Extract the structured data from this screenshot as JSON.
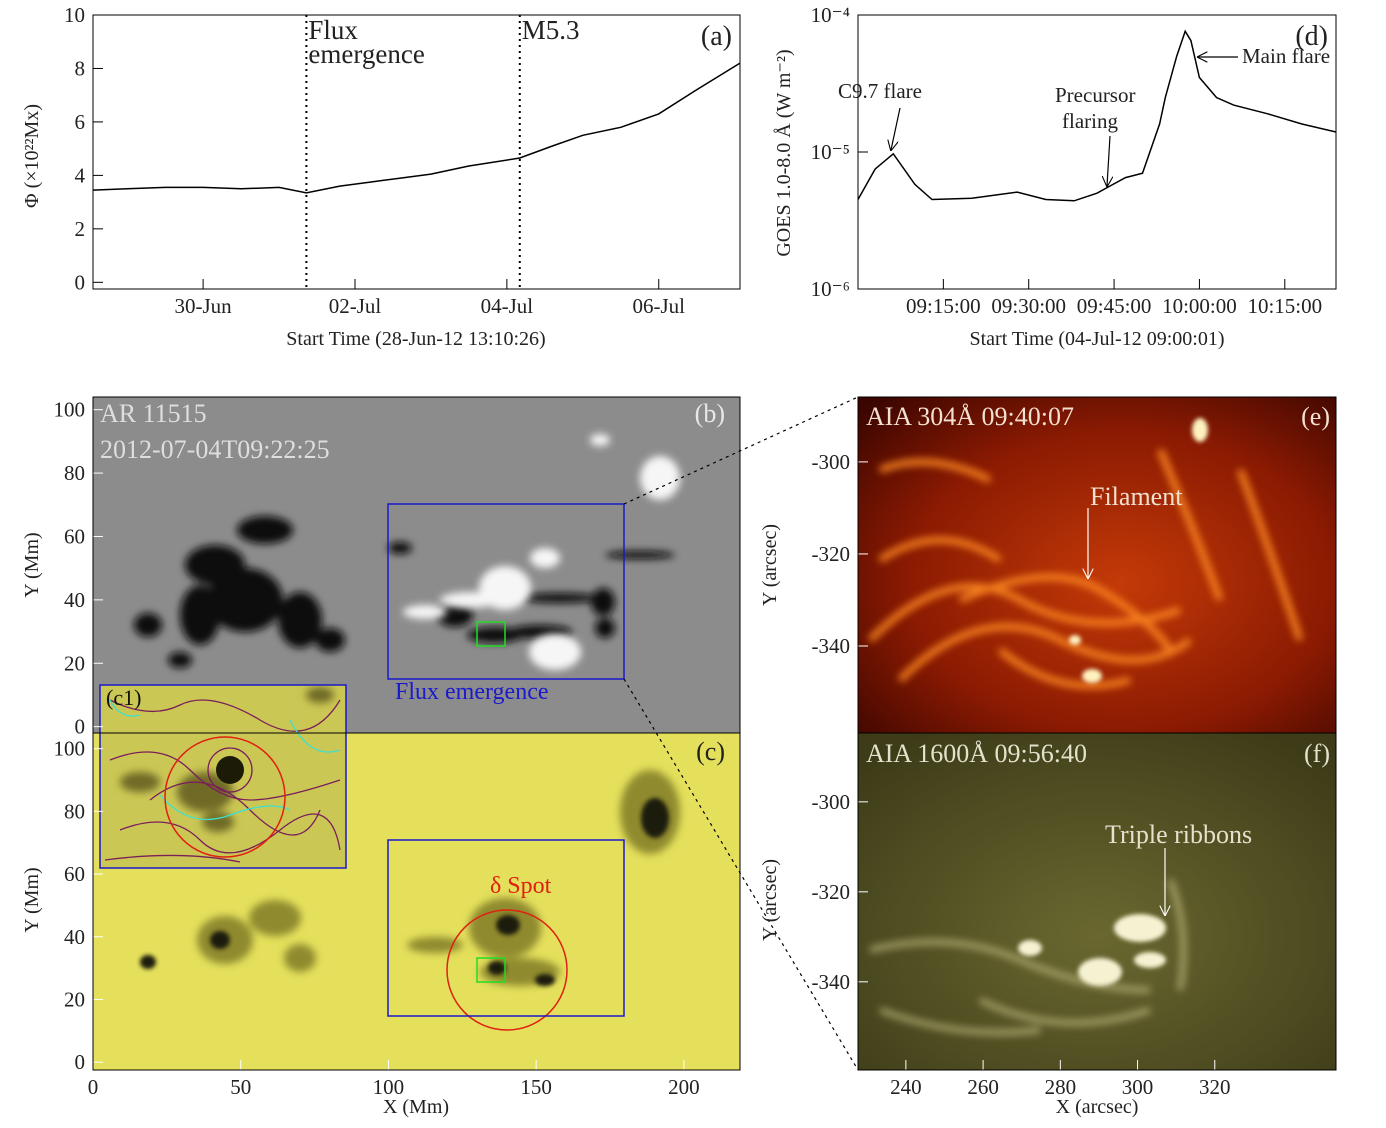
{
  "chart_data": [
    {
      "type": "line",
      "panel_label": "(a)",
      "ylabel": "Φ (×10²²Mx)",
      "xlabel": "Start Time (28-Jun-12 13:10:26)",
      "xlim": [
        0.55,
        9.07
      ],
      "ylim": [
        -0.25,
        10
      ],
      "xticks": [
        {
          "value": 2,
          "label": "30-Jun"
        },
        {
          "value": 4,
          "label": "02-Jul"
        },
        {
          "value": 6,
          "label": "04-Jul"
        },
        {
          "value": 8,
          "label": "06-Jul"
        }
      ],
      "yticks": [
        0,
        2,
        4,
        6,
        8,
        10
      ],
      "color": "#000000",
      "x": [
        0.55,
        1.0,
        1.5,
        2.0,
        2.5,
        3.0,
        3.36,
        3.8,
        4.2,
        4.6,
        5.0,
        5.5,
        6.17,
        6.6,
        7.0,
        7.5,
        8.0,
        8.5,
        9.07
      ],
      "values": [
        3.45,
        3.5,
        3.55,
        3.55,
        3.5,
        3.55,
        3.35,
        3.6,
        3.75,
        3.9,
        4.05,
        4.35,
        4.65,
        5.1,
        5.5,
        5.8,
        6.3,
        7.2,
        8.2
      ],
      "events": [
        {
          "x": 3.36,
          "label": [
            "Flux",
            "emergence"
          ]
        },
        {
          "x": 6.17,
          "label": [
            "M5.3"
          ]
        }
      ]
    },
    {
      "type": "line",
      "panel_label": "(d)",
      "ylabel": "GOES 1.0-8.0 Å (W m⁻²)",
      "xlabel": "Start Time (04-Jul-12 09:00:01)",
      "log_y": true,
      "xlim": [
        0,
        84
      ],
      "ylim": [
        1e-06,
        0.0001
      ],
      "xticks": [
        {
          "value": 15,
          "label": "09:15:00"
        },
        {
          "value": 30,
          "label": "09:30:00"
        },
        {
          "value": 45,
          "label": "09:45:00"
        },
        {
          "value": 60,
          "label": "10:00:00"
        },
        {
          "value": 75,
          "label": "10:15:00"
        }
      ],
      "yticks": [
        {
          "value": 1e-06,
          "label": "10⁻⁶"
        },
        {
          "value": 1e-05,
          "label": "10⁻⁵"
        },
        {
          "value": 0.0001,
          "label": "10⁻⁴"
        }
      ],
      "color": "#000000",
      "x": [
        0,
        3,
        6.2,
        10,
        13,
        20,
        28,
        33,
        38,
        42,
        44.5,
        47,
        50,
        53,
        54,
        56,
        57.5,
        58.5,
        60,
        63,
        66,
        72,
        78,
        84
      ],
      "values": [
        4.5e-06,
        7.5e-06,
        9.7e-06,
        5.8e-06,
        4.5e-06,
        4.6e-06,
        5.1e-06,
        4.5e-06,
        4.4e-06,
        5e-06,
        5.7e-06,
        6.5e-06,
        7e-06,
        1.6e-05,
        2.5e-05,
        5e-05,
        7.6e-05,
        6.5e-05,
        3.5e-05,
        2.5e-05,
        2.2e-05,
        1.9e-05,
        1.6e-05,
        1.4e-05
      ],
      "labels": [
        "C9.7 flare",
        "Precursor",
        "flaring",
        "Main flare"
      ]
    },
    {
      "type": "image",
      "ylabel": "Y (Mm)",
      "ylim": [
        -2,
        104
      ],
      "xlim": [
        0,
        219
      ],
      "yticks": [
        0,
        20,
        40,
        60,
        80,
        100
      ],
      "labels": [
        "AR 11515",
        "2012-07-04T09:22:25",
        "(b)",
        "Flux emergence"
      ]
    },
    {
      "type": "image",
      "ylabel": "Y (Mm)",
      "xlabel": "X (Mm)",
      "ylim": [
        -2.5,
        105
      ],
      "xlim": [
        0,
        219
      ],
      "yticks": [
        0,
        20,
        40,
        60,
        80,
        100
      ],
      "xticks": [
        0,
        50,
        100,
        150,
        200
      ],
      "labels": [
        "(c)",
        "(c1)",
        "δ Spot"
      ]
    },
    {
      "type": "image",
      "ylabel": "Y (arcsec)",
      "ylim": [
        -358.9,
        -285.9
      ],
      "xlim": [
        227.6,
        351.4
      ],
      "yticks": [
        -300,
        -320,
        -340
      ],
      "labels": [
        "AIA 304Å 09:40:07",
        "(e)",
        "Filament"
      ]
    },
    {
      "type": "image",
      "ylabel": "Y (arcsec)",
      "xlabel": "X (arcsec)",
      "ylim": [
        -359.6,
        -284.7
      ],
      "xlim": [
        227.6,
        351.4
      ],
      "yticks": [
        -300,
        -320,
        -340
      ],
      "xticks": [
        240,
        260,
        280,
        300,
        320
      ],
      "labels": [
        "AIA 1600Å 09:56:40",
        "(f)",
        "Triple ribbons"
      ]
    }
  ]
}
